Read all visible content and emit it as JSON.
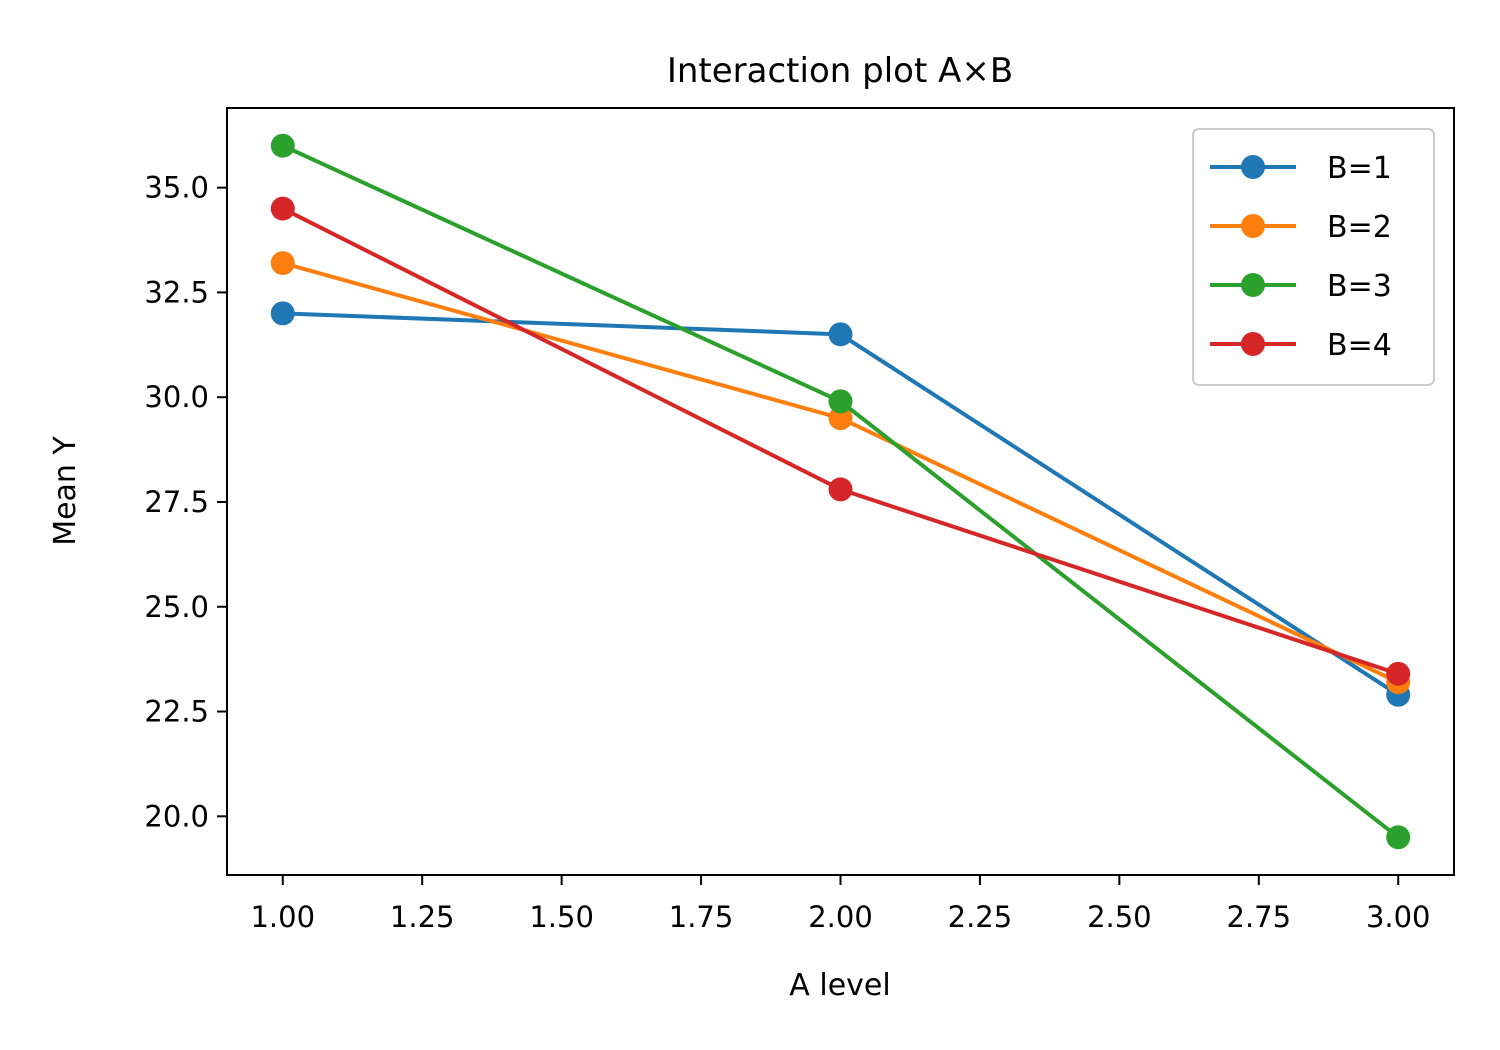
{
  "chart_data": {
    "type": "line",
    "title": "Interaction plot A×B",
    "xlabel": "A level",
    "ylabel": "Mean Y",
    "x": [
      1,
      2,
      3
    ],
    "xlim": [
      0.9,
      3.1
    ],
    "ylim": [
      18.6,
      36.9
    ],
    "xticks": [
      1.0,
      1.25,
      1.5,
      1.75,
      2.0,
      2.25,
      2.5,
      2.75,
      3.0
    ],
    "xtick_labels": [
      "1.00",
      "1.25",
      "1.50",
      "1.75",
      "2.00",
      "2.25",
      "2.50",
      "2.75",
      "3.00"
    ],
    "yticks": [
      20.0,
      22.5,
      25.0,
      27.5,
      30.0,
      32.5,
      35.0
    ],
    "ytick_labels": [
      "20.0",
      "22.5",
      "25.0",
      "27.5",
      "30.0",
      "32.5",
      "35.0"
    ],
    "grid": false,
    "legend_position": "top-right",
    "markers": "circle",
    "series": [
      {
        "name": "B=1",
        "color": "#1f77b4",
        "values": [
          32.0,
          31.5,
          22.9
        ]
      },
      {
        "name": "B=2",
        "color": "#ff7f0e",
        "values": [
          33.2,
          29.5,
          23.2
        ]
      },
      {
        "name": "B=3",
        "color": "#2ca02c",
        "values": [
          36.0,
          29.9,
          19.5
        ]
      },
      {
        "name": "B=4",
        "color": "#d62728",
        "values": [
          34.5,
          27.8,
          23.4
        ]
      }
    ]
  }
}
